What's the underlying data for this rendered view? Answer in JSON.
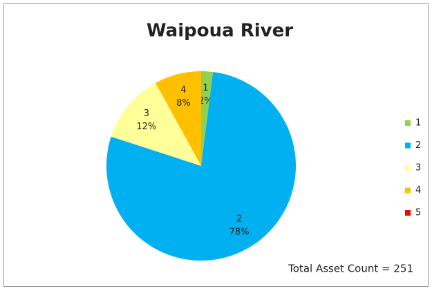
{
  "chart_data": {
    "type": "pie",
    "title": "Waipoua River",
    "categories": [
      "1",
      "2",
      "3",
      "4",
      "5"
    ],
    "values": [
      2,
      78,
      12,
      8,
      0
    ],
    "value_labels": [
      "2%",
      "78%",
      "12%",
      "8%",
      null
    ],
    "colors": [
      "#92d050",
      "#00b0f0",
      "#ffff99",
      "#ffc000",
      "#ff0000"
    ],
    "annotation": "Total Asset Count = 251",
    "legend": "right"
  }
}
